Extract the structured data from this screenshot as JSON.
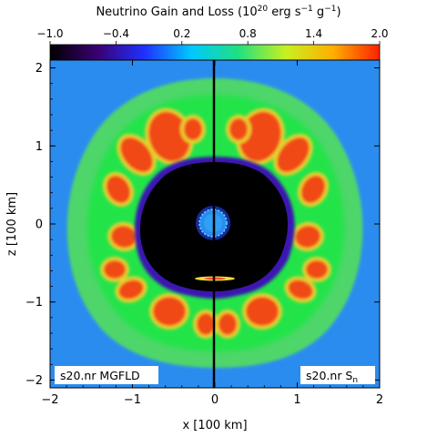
{
  "chart_data": {
    "type": "heatmap",
    "title": "Neutrino Gain and Loss (10",
    "title_exp": "20",
    "title_units": " erg s",
    "title_exp2": "−1",
    "title_units2": " g",
    "title_exp3": "−1",
    "title_close": ")",
    "colorbar": {
      "range": [
        -1.0,
        2.0
      ],
      "ticks": [
        "−1.0",
        "−0.4",
        "0.2",
        "0.8",
        "1.4",
        "2.0"
      ],
      "tick_values": [
        -1.0,
        -0.4,
        0.2,
        0.8,
        1.4,
        2.0
      ],
      "colormap": [
        "#000000",
        "#3a0070",
        "#2030ff",
        "#00c8ff",
        "#20e080",
        "#c8f020",
        "#ffb000",
        "#ff2000"
      ]
    },
    "xlabel": "x [100 km]",
    "ylabel": "z [100 km]",
    "xlim": [
      -2,
      2
    ],
    "ylim": [
      -2.1,
      2.1
    ],
    "xticks": [
      -2,
      -1,
      0,
      1,
      2
    ],
    "yticks": [
      -2,
      -1,
      0,
      1,
      2
    ],
    "xtick_labels": [
      "−2",
      "−1",
      "0",
      "1",
      "2"
    ],
    "ytick_labels": [
      "−2",
      "−1",
      "0",
      "1",
      "2"
    ],
    "panels": [
      {
        "label": "s20.nr MGFLD",
        "side": "left"
      },
      {
        "label": "s20.nr S",
        "label_sub": "n",
        "side": "right"
      }
    ],
    "colors": {
      "background": "#2b8cf0",
      "outer_shell": "#38d858",
      "inner_shell": "#18e640",
      "gain_blobs": "#f04818",
      "gain_edge": "#f0c030",
      "loss_core": "#000000",
      "loss_edge": "#2a10a0"
    }
  }
}
